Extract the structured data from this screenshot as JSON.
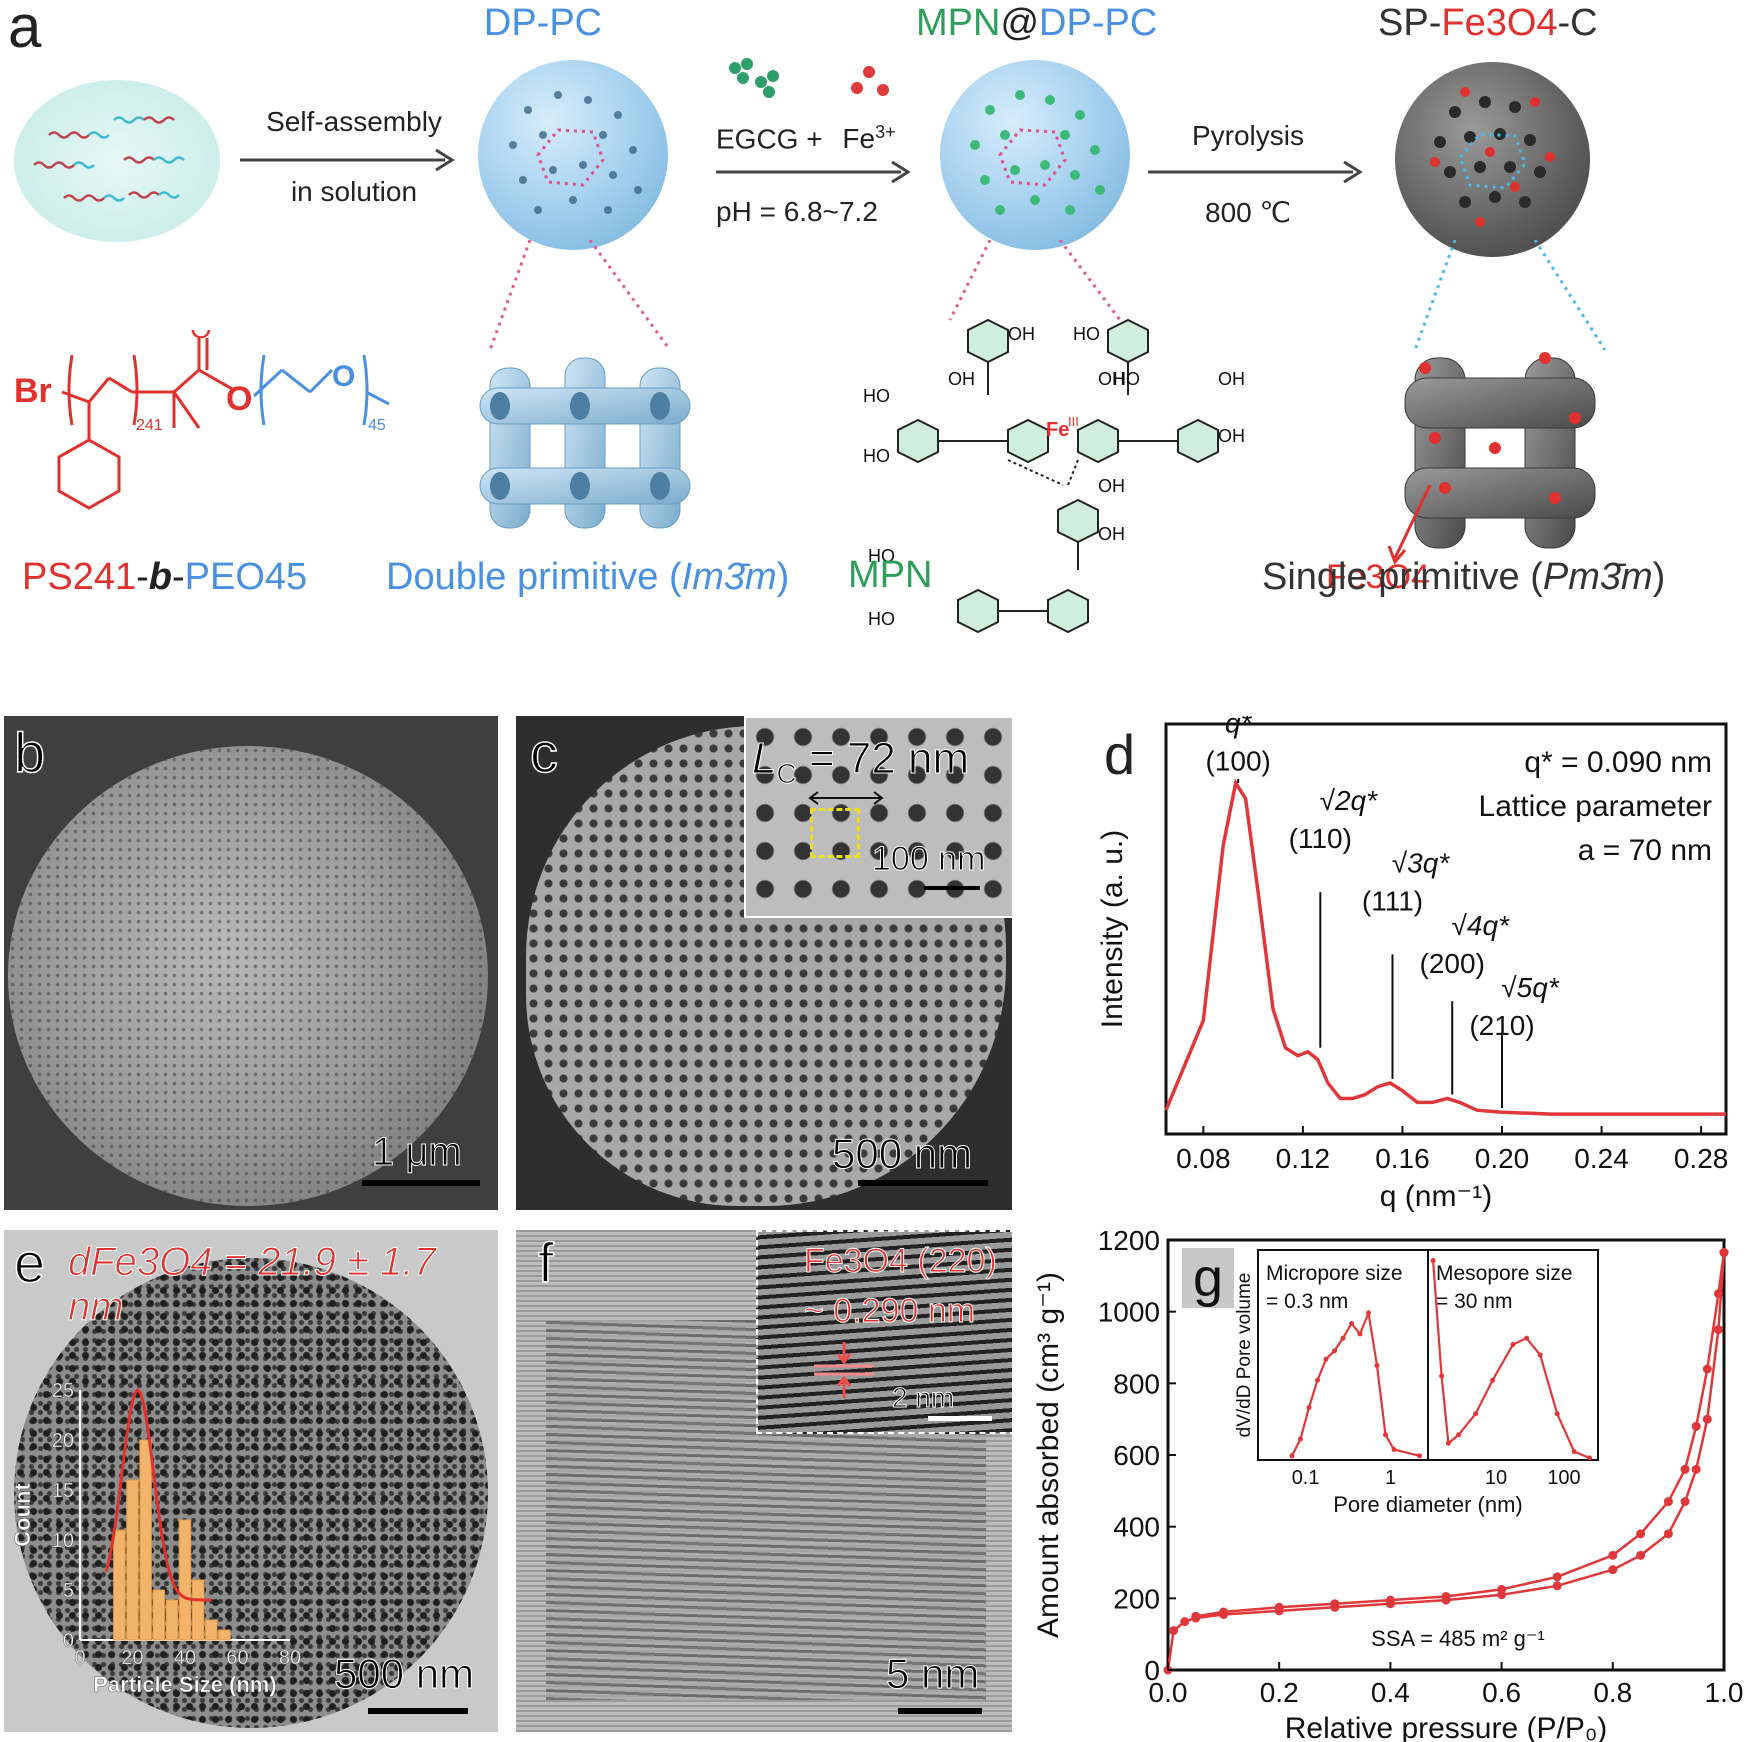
{
  "panel_a": {
    "letter": "a",
    "step1": {
      "line1": "Self-assembly",
      "line2": "in solution"
    },
    "step2": {
      "reagents": "EGCG +",
      "fe": "Fe",
      "fe_sup": "3+",
      "ph": "pH = 6.8~7.2"
    },
    "step3": {
      "line1": "Pyrolysis",
      "line2": "800 ℃"
    },
    "title_dppc": "DP-PC",
    "title_mpn": {
      "p1": "MPN",
      "p2": "@",
      "p3": "DP-PC"
    },
    "title_sp": {
      "p1": "SP-",
      "p2": "Fe3O4",
      "p3": "-C"
    },
    "polymer": {
      "br": "Br",
      "n1": "241",
      "n2": "45",
      "o": "O"
    },
    "polymer_label": {
      "ps": "PS241",
      "dash1": "-",
      "b": "b",
      "dash2": "-",
      "peo": "PEO45"
    },
    "double_primitive": {
      "text": "Double primitive (",
      "sym": "Im3̄m",
      "close": ")"
    },
    "single_primitive": {
      "text": "Single primitive (",
      "sym": "Pm3̄m",
      "close": ")"
    },
    "mpn_label": "MPN",
    "fe3o4_label": "Fe3O4",
    "mpn_struct": {
      "oh": "OH",
      "ho": "HO",
      "fe": "Fe",
      "fe_sup": "III",
      "o": "O"
    }
  },
  "panel_b": {
    "letter": "b",
    "scale": "1 μm"
  },
  "panel_c": {
    "letter": "c",
    "inset_label": "L",
    "inset_sub": "C",
    "inset_value": " = 72 nm",
    "inset_scale": "100 nm",
    "scale": "500 nm"
  },
  "panel_d": {
    "letter": "d",
    "info1": "q* = 0.090 nm",
    "info2": "Lattice parameter",
    "info3": "a = 70 nm",
    "peaks": [
      {
        "top": "q*",
        "hkl": "(100)"
      },
      {
        "top": "√2q*",
        "hkl": "(110)"
      },
      {
        "top": "√3q*",
        "hkl": "(111)"
      },
      {
        "top": "√4q*",
        "hkl": "(200)"
      },
      {
        "top": "√5q*",
        "hkl": "(210)"
      }
    ],
    "ylabel": "Intensity (a. u.)",
    "xlabel": "q (nm⁻¹)",
    "xticks": [
      "0.08",
      "0.12",
      "0.16",
      "0.20",
      "0.24",
      "0.28"
    ]
  },
  "panel_e": {
    "letter": "e",
    "title": "dFe3O4 = 21.9 ± 1.7 nm",
    "hist_ylabel": "Count",
    "hist_xlabel": "Particle Size (nm)",
    "hist_xticks": [
      "0",
      "20",
      "40",
      "60",
      "80"
    ],
    "hist_yticks": [
      "0",
      "5",
      "10",
      "15",
      "20",
      "25"
    ],
    "scale": "500 nm"
  },
  "panel_f": {
    "letter": "f",
    "inset_line1": "Fe3O4 (220)",
    "inset_line2": "~ 0.290 nm",
    "inset_scale": "2 nm",
    "scale": "5 nm"
  },
  "panel_g": {
    "letter": "g",
    "ylabel": "Amount absorbed (cm³ g⁻¹)",
    "xlabel": "Relative pressure (P/P₀)",
    "xticks": [
      "0.0",
      "0.2",
      "0.4",
      "0.6",
      "0.8",
      "1.0"
    ],
    "yticks": [
      "0",
      "200",
      "400",
      "600",
      "800",
      "1000",
      "1200"
    ],
    "ssa": "SSA = 485 m² g⁻¹",
    "inset_left_title1": "Micropore size",
    "inset_left_title2": "= 0.3 nm",
    "inset_right_title1": "Mesopore size",
    "inset_right_title2": "= 30 nm",
    "inset_ylabel": "dV/dD Pore volume",
    "inset_xlabel": "Pore diameter (nm)",
    "inset_left_xticks": [
      "0.1",
      "1"
    ],
    "inset_right_xticks": [
      "10",
      "100"
    ]
  },
  "colors": {
    "red": "#e0312e",
    "blue": "#4a90e2",
    "green": "#2e9e5b",
    "curve": "#e0383a"
  },
  "chart_data": [
    {
      "type": "line",
      "title": "",
      "xlabel": "q (nm⁻¹)",
      "ylabel": "Intensity (a. u.)",
      "xlim": [
        0.065,
        0.29
      ],
      "series": [
        {
          "x": [
            0.065,
            0.08,
            0.088,
            0.093,
            0.097,
            0.102,
            0.108,
            0.113,
            0.118,
            0.122,
            0.126,
            0.13,
            0.135,
            0.14,
            0.145,
            0.15,
            0.155,
            0.16,
            0.166,
            0.172,
            0.178,
            0.183,
            0.19,
            0.2,
            0.22,
            0.25,
            0.29
          ],
          "y": [
            0.02,
            0.25,
            0.7,
            0.86,
            0.82,
            0.58,
            0.28,
            0.18,
            0.16,
            0.17,
            0.15,
            0.09,
            0.05,
            0.05,
            0.06,
            0.08,
            0.09,
            0.07,
            0.04,
            0.04,
            0.05,
            0.04,
            0.02,
            0.015,
            0.01,
            0.01,
            0.01
          ]
        }
      ],
      "annotations": [
        "q* (100)",
        "√2q* (110)",
        "√3q* (111)",
        "√4q* (200)",
        "√5q* (210)"
      ]
    },
    {
      "type": "bar",
      "title": "dFe3O4 = 21.9 ± 1.7 nm",
      "xlabel": "Particle Size (nm)",
      "ylabel": "Count",
      "xlim": [
        0,
        80
      ],
      "ylim": [
        0,
        25
      ],
      "categories": [
        15,
        20,
        25,
        30,
        35,
        40,
        45,
        50,
        55
      ],
      "values": [
        11,
        16,
        20,
        5,
        4,
        12,
        6,
        2,
        1
      ]
    },
    {
      "type": "line",
      "xlabel": "Relative pressure (P/P₀)",
      "ylabel": "Amount absorbed (cm³ g⁻¹)",
      "xlim": [
        0,
        1.0
      ],
      "ylim": [
        0,
        1200
      ],
      "series": [
        {
          "x": [
            0.0,
            0.01,
            0.03,
            0.05,
            0.1,
            0.2,
            0.3,
            0.4,
            0.5,
            0.6,
            0.7,
            0.8,
            0.85,
            0.9,
            0.93,
            0.95,
            0.97,
            0.99,
            1.0
          ],
          "y": [
            0,
            110,
            135,
            145,
            155,
            165,
            175,
            185,
            195,
            210,
            235,
            280,
            320,
            380,
            470,
            560,
            700,
            950,
            1165
          ]
        },
        {
          "x": [
            0.05,
            0.1,
            0.2,
            0.3,
            0.4,
            0.5,
            0.6,
            0.7,
            0.8,
            0.85,
            0.9,
            0.93,
            0.95,
            0.97,
            0.99,
            1.0
          ],
          "y": [
            150,
            162,
            175,
            185,
            195,
            205,
            225,
            260,
            320,
            380,
            470,
            560,
            680,
            840,
            1050,
            1165
          ]
        }
      ]
    }
  ]
}
